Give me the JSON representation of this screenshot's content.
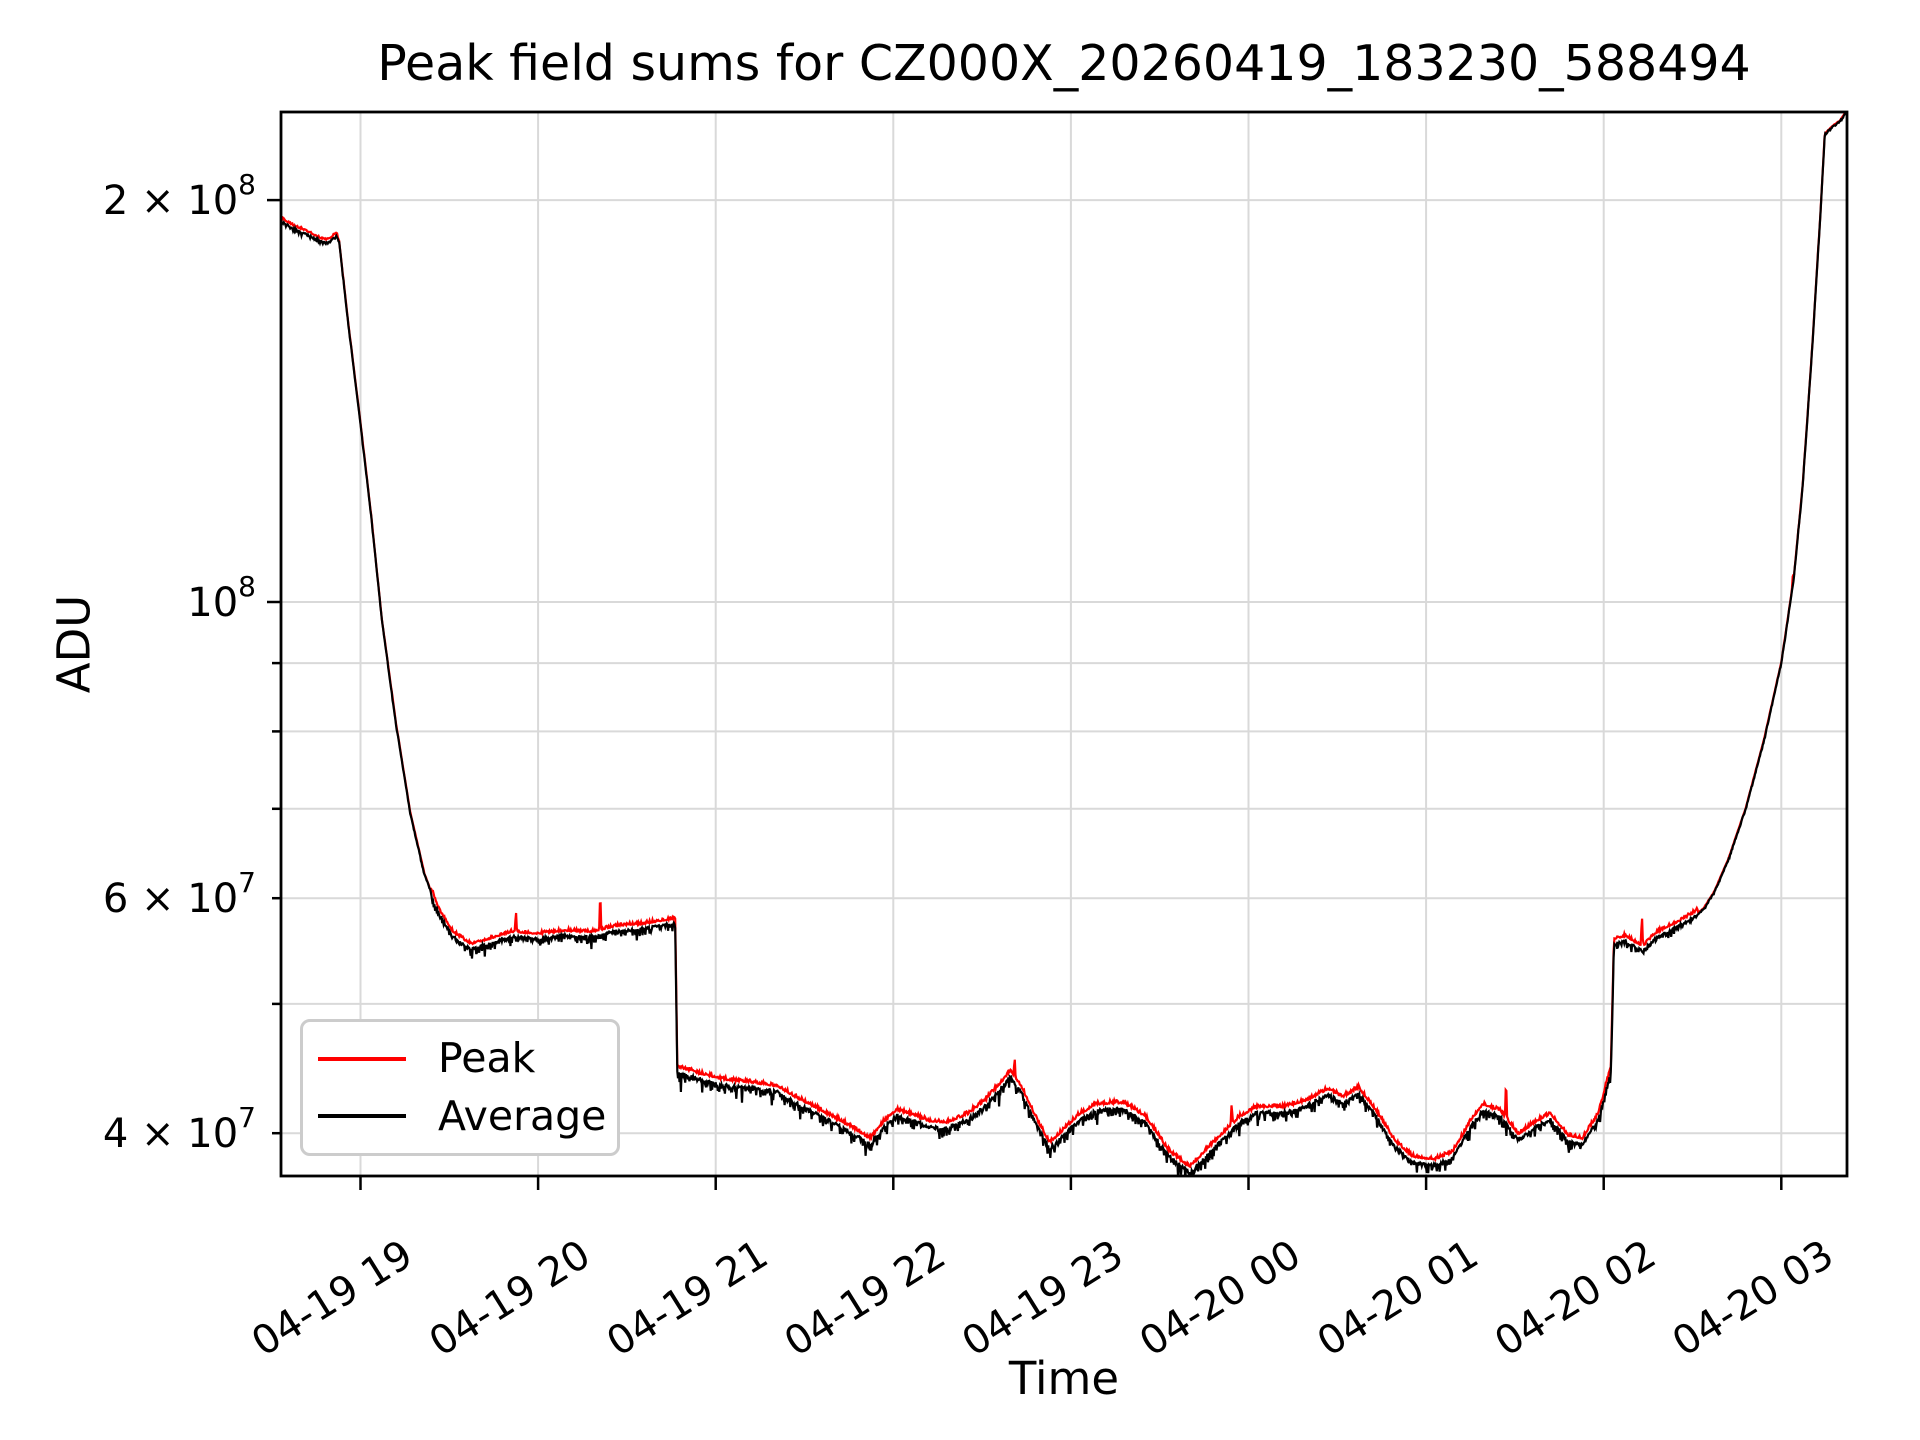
{
  "title": "Peak field sums for CZ000X_20260419_183230_588494",
  "axes": {
    "xlabel": "Time",
    "ylabel": "ADU"
  },
  "legend": {
    "items": [
      {
        "label": "Peak",
        "color": "#ff0000"
      },
      {
        "label": "Average",
        "color": "#000000"
      }
    ]
  },
  "colors": {
    "peak_line": "#ff0000",
    "average_line": "#000000",
    "grid": "#d9d9d9",
    "spine": "#000000",
    "background": "#ffffff",
    "legend_border": "#cccccc"
  },
  "chart_data": {
    "type": "line",
    "yscale": "log",
    "grid": "both",
    "legend_position": "lower left",
    "x_unit": "hours since 2026-04-19 00:00",
    "x_range_hours": [
      18.552,
      27.372
    ],
    "ylim": [
      37000000,
      233500000
    ],
    "x_ticks": [
      {
        "t": 19,
        "label": "04-19 19"
      },
      {
        "t": 20,
        "label": "04-19 20"
      },
      {
        "t": 21,
        "label": "04-19 21"
      },
      {
        "t": 22,
        "label": "04-19 22"
      },
      {
        "t": 23,
        "label": "04-19 23"
      },
      {
        "t": 24,
        "label": "04-20 00"
      },
      {
        "t": 25,
        "label": "04-20 01"
      },
      {
        "t": 26,
        "label": "04-20 02"
      },
      {
        "t": 27,
        "label": "04-20 03"
      }
    ],
    "y_ticks": [
      {
        "v": 200000000,
        "mantissa": "2 × 10",
        "exp": "8",
        "kind": "major"
      },
      {
        "v": 100000000,
        "mantissa": "10",
        "exp": "8",
        "kind": "major"
      },
      {
        "v": 90000000,
        "mantissa": "",
        "exp": "",
        "kind": "minor"
      },
      {
        "v": 80000000,
        "mantissa": "",
        "exp": "",
        "kind": "minor"
      },
      {
        "v": 70000000,
        "mantissa": "",
        "exp": "",
        "kind": "minor"
      },
      {
        "v": 60000000,
        "mantissa": "6 × 10",
        "exp": "7",
        "kind": "minor"
      },
      {
        "v": 50000000,
        "mantissa": "",
        "exp": "",
        "kind": "minor"
      },
      {
        "v": 40000000,
        "mantissa": "4 × 10",
        "exp": "7",
        "kind": "minor"
      }
    ],
    "series_names": [
      "Peak",
      "Average"
    ],
    "average_anchors": [
      [
        18.552,
        193000000
      ],
      [
        18.62,
        190500000
      ],
      [
        18.7,
        188500000
      ],
      [
        18.78,
        186200000
      ],
      [
        18.82,
        185800000
      ],
      [
        18.866,
        188200000
      ],
      [
        18.88,
        186000000
      ],
      [
        18.93,
        162000000
      ],
      [
        19.0,
        136000000
      ],
      [
        19.06,
        116000000
      ],
      [
        19.12,
        97000000
      ],
      [
        19.2,
        81000000
      ],
      [
        19.28,
        69500000
      ],
      [
        19.36,
        62500000
      ],
      [
        19.44,
        58500000
      ],
      [
        19.52,
        56200000
      ],
      [
        19.62,
        55000000
      ],
      [
        19.72,
        55500000
      ],
      [
        19.85,
        56200000
      ],
      [
        20.0,
        56000000
      ],
      [
        20.15,
        56300000
      ],
      [
        20.3,
        56200000
      ],
      [
        20.45,
        56800000
      ],
      [
        20.6,
        57000000
      ],
      [
        20.7,
        57300000
      ],
      [
        20.772,
        57500000
      ],
      [
        20.784,
        44500000
      ],
      [
        20.9,
        44000000
      ],
      [
        21.05,
        43500000
      ],
      [
        21.2,
        43300000
      ],
      [
        21.35,
        43000000
      ],
      [
        21.45,
        42200000
      ],
      [
        21.6,
        41200000
      ],
      [
        21.75,
        40200000
      ],
      [
        21.87,
        39300000
      ],
      [
        21.95,
        40500000
      ],
      [
        22.02,
        41300000
      ],
      [
        22.1,
        41000000
      ],
      [
        22.2,
        40500000
      ],
      [
        22.3,
        40400000
      ],
      [
        22.42,
        41000000
      ],
      [
        22.52,
        42000000
      ],
      [
        22.62,
        43500000
      ],
      [
        22.66,
        44200000
      ],
      [
        22.72,
        43000000
      ],
      [
        22.8,
        40800000
      ],
      [
        22.88,
        39000000
      ],
      [
        22.95,
        39800000
      ],
      [
        23.05,
        41000000
      ],
      [
        23.15,
        41700000
      ],
      [
        23.3,
        41800000
      ],
      [
        23.42,
        40800000
      ],
      [
        23.55,
        38500000
      ],
      [
        23.67,
        37400000
      ],
      [
        23.8,
        39000000
      ],
      [
        23.95,
        40800000
      ],
      [
        24.05,
        41500000
      ],
      [
        24.2,
        41500000
      ],
      [
        24.33,
        42000000
      ],
      [
        24.45,
        42800000
      ],
      [
        24.53,
        42200000
      ],
      [
        24.62,
        42900000
      ],
      [
        24.72,
        41200000
      ],
      [
        24.82,
        39200000
      ],
      [
        24.92,
        38100000
      ],
      [
        25.05,
        37900000
      ],
      [
        25.15,
        38400000
      ],
      [
        25.25,
        40500000
      ],
      [
        25.32,
        41700000
      ],
      [
        25.42,
        41200000
      ],
      [
        25.52,
        39600000
      ],
      [
        25.62,
        40500000
      ],
      [
        25.7,
        41000000
      ],
      [
        25.8,
        39500000
      ],
      [
        25.88,
        39300000
      ],
      [
        25.97,
        41000000
      ],
      [
        26.04,
        44500000
      ],
      [
        26.058,
        55500000
      ],
      [
        26.12,
        55800000
      ],
      [
        26.18,
        55200000
      ],
      [
        26.22,
        54800000
      ],
      [
        26.3,
        56200000
      ],
      [
        26.42,
        57200000
      ],
      [
        26.5,
        58000000
      ],
      [
        26.56,
        58800000
      ],
      [
        26.62,
        60500000
      ],
      [
        26.7,
        64000000
      ],
      [
        26.8,
        70000000
      ],
      [
        26.9,
        78500000
      ],
      [
        27.0,
        90000000
      ],
      [
        27.07,
        104000000
      ],
      [
        27.12,
        122000000
      ],
      [
        27.17,
        152000000
      ],
      [
        27.22,
        195000000
      ],
      [
        27.245,
        224000000
      ],
      [
        27.29,
        227000000
      ],
      [
        27.33,
        229000000
      ],
      [
        27.372,
        233500000
      ]
    ],
    "noise_segments": [
      [
        18.552,
        18.87,
        0.004,
        0.003,
        0.005
      ],
      [
        18.87,
        19.4,
        0.0015,
        0.001,
        0.0015
      ],
      [
        19.4,
        20.776,
        0.014,
        0.005,
        0.007
      ],
      [
        20.776,
        26.05,
        0.018,
        0.006,
        0.008
      ],
      [
        26.05,
        26.53,
        0.012,
        0.005,
        0.007
      ],
      [
        26.53,
        27.372,
        0.0015,
        0.001,
        0.0015
      ]
    ],
    "peak_spikes": [
      [
        19.875,
        1.048
      ],
      [
        20.35,
        1.075
      ],
      [
        22.683,
        1.045
      ],
      [
        23.905,
        1.05
      ],
      [
        25.45,
        1.08
      ],
      [
        26.215,
        1.065
      ],
      [
        27.065,
        1.02
      ]
    ],
    "sample_step_hours": 0.004,
    "noise_seed": 12345
  }
}
